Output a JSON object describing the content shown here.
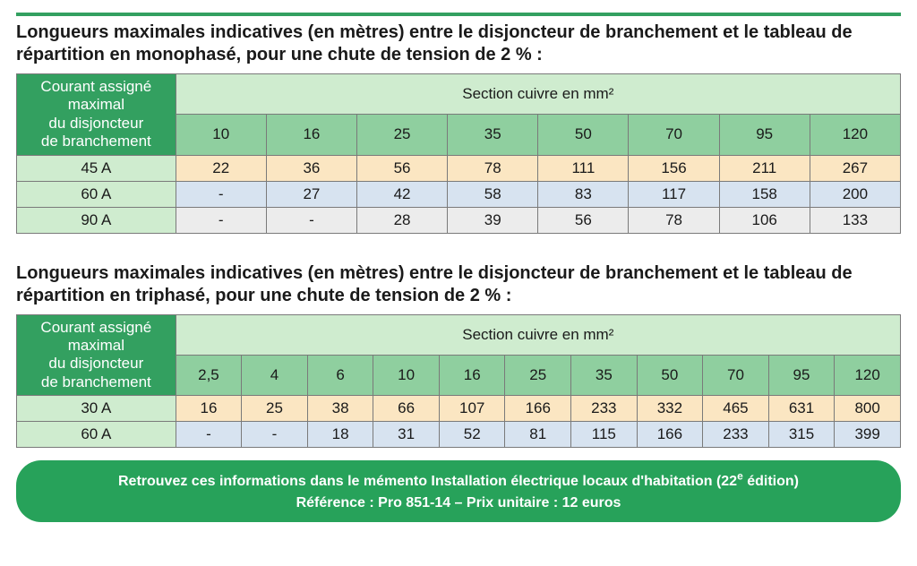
{
  "colors": {
    "accent_green": "#33a060",
    "light_green": "#cfeccf",
    "mid_green": "#8fcf9f",
    "row_a": "#fbe6c2",
    "row_b": "#d7e3f0",
    "row_c": "#ececec",
    "pill_green": "#27a25a",
    "border": "#7a7a7a",
    "text": "#1a1a1a"
  },
  "top_rule_color": "#33a060",
  "heading1": "Longueurs maximales indicatives (en mètres) entre le disjoncteur de branchement et le tableau de répartition en monophasé, pour une chute de tension de 2 % :",
  "table1": {
    "row_header_text": "Courant assigné maximal du disjoncteur de branchement",
    "super_header": "Section cuivre en mm²",
    "columns": [
      "10",
      "16",
      "25",
      "35",
      "50",
      "70",
      "95",
      "120"
    ],
    "row_label_col_width_pct": 18,
    "rows": [
      {
        "label": "45 A",
        "class": "row-a",
        "values": [
          "22",
          "36",
          "56",
          "78",
          "111",
          "156",
          "211",
          "267"
        ]
      },
      {
        "label": "60 A",
        "class": "row-b",
        "values": [
          "-",
          "27",
          "42",
          "58",
          "83",
          "117",
          "158",
          "200"
        ]
      },
      {
        "label": "90 A",
        "class": "row-c",
        "values": [
          "-",
          "-",
          "28",
          "39",
          "56",
          "78",
          "106",
          "133"
        ]
      }
    ]
  },
  "heading2": "Longueurs maximales indicatives (en mètres) entre le disjoncteur de branchement et le tableau de répartition en triphasé, pour une chute de tension de 2 % :",
  "table2": {
    "row_header_text": "Courant assigné maximal du disjoncteur de branchement",
    "super_header": "Section cuivre en mm²",
    "columns": [
      "2,5",
      "4",
      "6",
      "10",
      "16",
      "25",
      "35",
      "50",
      "70",
      "95",
      "120"
    ],
    "row_label_col_width_pct": 18,
    "rows": [
      {
        "label": "30 A",
        "class": "row-a",
        "values": [
          "16",
          "25",
          "38",
          "66",
          "107",
          "166",
          "233",
          "332",
          "465",
          "631",
          "800"
        ]
      },
      {
        "label": "60 A",
        "class": "row-b",
        "values": [
          "-",
          "-",
          "18",
          "31",
          "52",
          "81",
          "115",
          "166",
          "233",
          "315",
          "399"
        ]
      }
    ]
  },
  "pill": {
    "line1_pre": "Retrouvez ces informations dans le mémento Installation électrique locaux d'habitation (22",
    "line1_sup": "e",
    "line1_post": " édition)",
    "line2": "Référence : Pro 851-14 – Prix unitaire : 12 euros",
    "bg": "#27a25a"
  }
}
